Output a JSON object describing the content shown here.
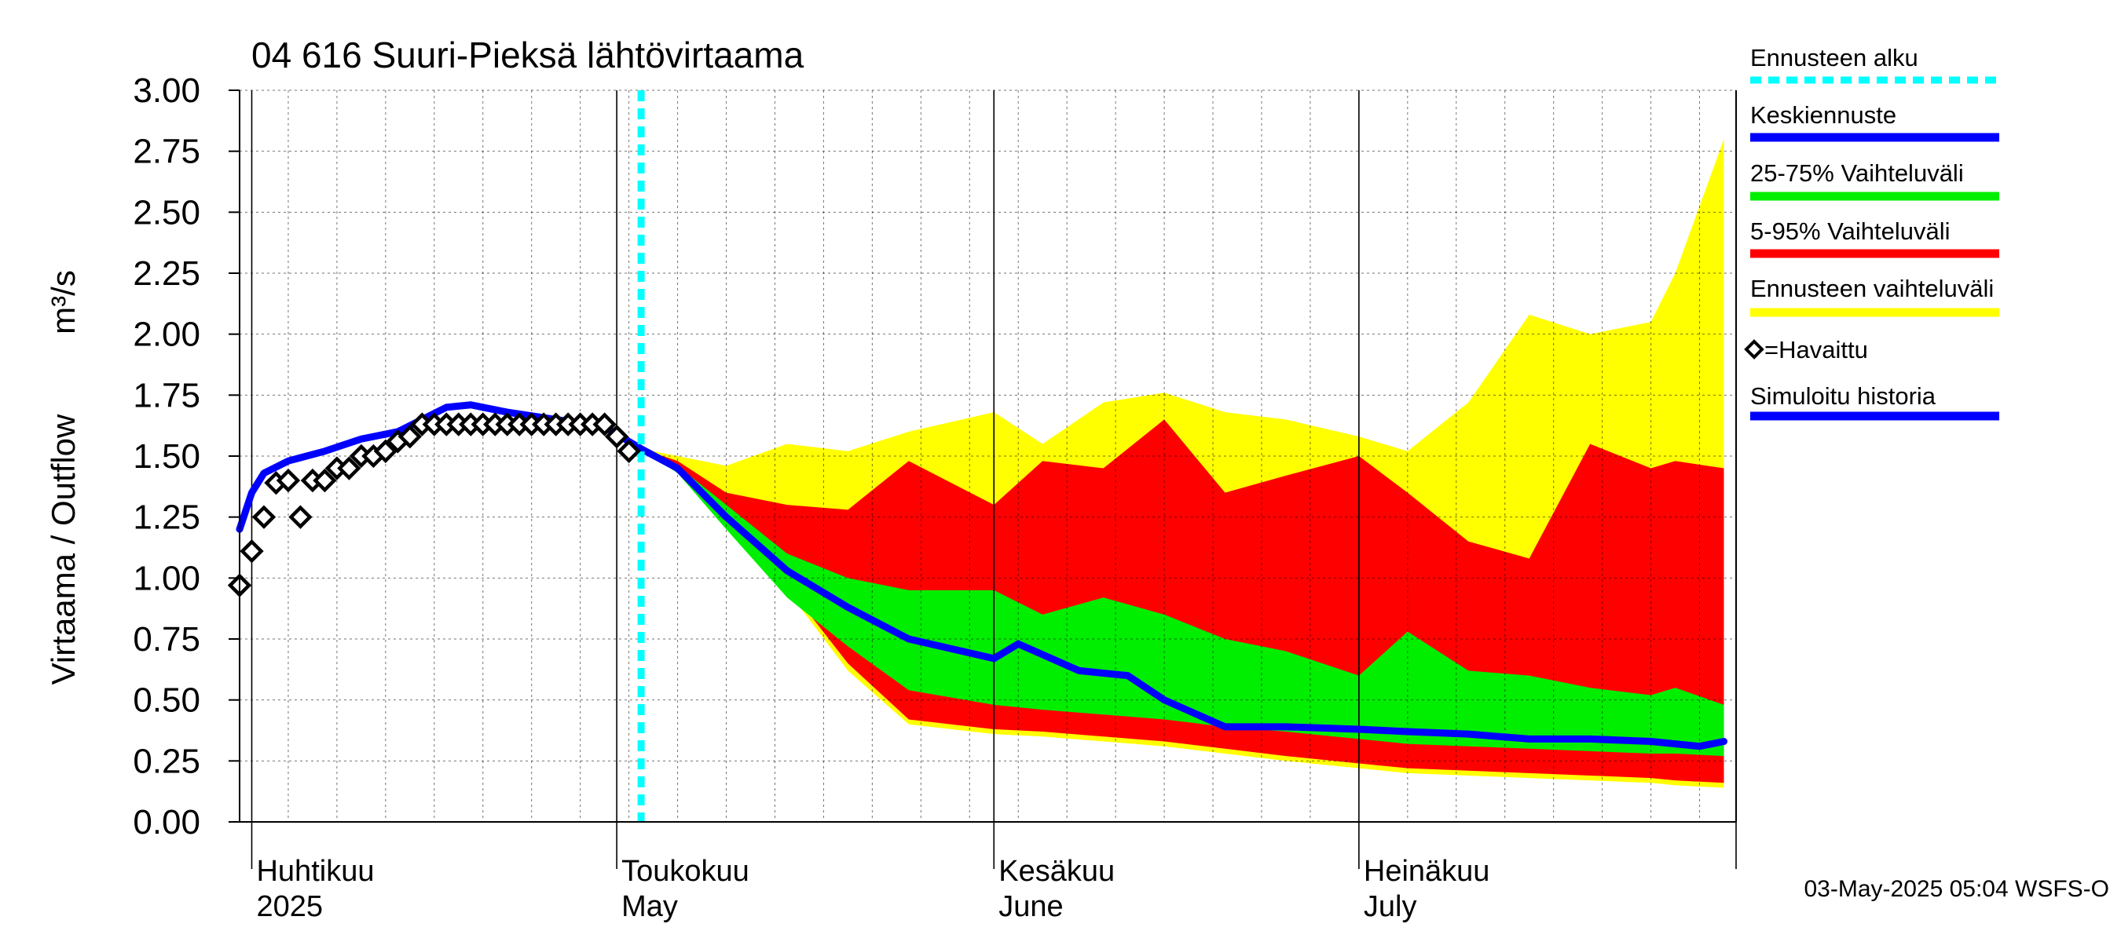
{
  "chart_data": {
    "type": "area",
    "title": "04 616 Suuri-Pieksä lähtövirtaama",
    "ylabel": "Virtaama / Outflow",
    "yunit": "m³/s",
    "ylim": [
      0,
      3.0
    ],
    "yticks": [
      "0.00",
      "0.25",
      "0.50",
      "0.75",
      "1.00",
      "1.25",
      "1.50",
      "1.75",
      "2.00",
      "2.25",
      "2.50",
      "2.75",
      "3.00"
    ],
    "xlim": [
      "2025-03-31",
      "2025-08-01"
    ],
    "month_labels": [
      {
        "line1": "Huhtikuu",
        "line2": "2025",
        "date": "2025-04-01"
      },
      {
        "line1": "Toukokuu",
        "line2": "May",
        "date": "2025-05-01"
      },
      {
        "line1": "Kesäkuu",
        "line2": "June",
        "date": "2025-06-01"
      },
      {
        "line1": "Heinäkuu",
        "line2": "July",
        "date": "2025-07-01"
      }
    ],
    "grid": true,
    "legend_position": "right",
    "footer": "03-May-2025 05:04 WSFS-O",
    "forecast_start": "2025-05-03",
    "band_x": [
      "2025-05-03",
      "2025-05-06",
      "2025-05-10",
      "2025-05-15",
      "2025-05-20",
      "2025-05-25",
      "2025-06-01",
      "2025-06-05",
      "2025-06-10",
      "2025-06-15",
      "2025-06-20",
      "2025-06-25",
      "2025-07-01",
      "2025-07-05",
      "2025-07-10",
      "2025-07-15",
      "2025-07-20",
      "2025-07-25",
      "2025-07-27",
      "2025-07-31"
    ],
    "series": [
      {
        "name": "Ennusteen vaihteluväli",
        "kind": "band",
        "color": "#ffff00",
        "lower": [
          1.53,
          1.45,
          1.25,
          0.95,
          0.62,
          0.4,
          0.36,
          0.35,
          0.33,
          0.31,
          0.28,
          0.25,
          0.22,
          0.2,
          0.19,
          0.18,
          0.17,
          0.16,
          0.15,
          0.14
        ],
        "upper": [
          1.53,
          1.5,
          1.46,
          1.55,
          1.52,
          1.6,
          1.68,
          1.55,
          1.72,
          1.76,
          1.68,
          1.65,
          1.58,
          1.52,
          1.72,
          2.08,
          2.0,
          2.05,
          2.25,
          2.8
        ]
      },
      {
        "name": "5-95% Vaihteluväli",
        "kind": "band",
        "color": "#ff0000",
        "lower": [
          1.53,
          1.45,
          1.27,
          0.97,
          0.65,
          0.42,
          0.38,
          0.37,
          0.35,
          0.33,
          0.3,
          0.27,
          0.24,
          0.22,
          0.21,
          0.2,
          0.19,
          0.18,
          0.17,
          0.16
        ],
        "upper": [
          1.53,
          1.48,
          1.35,
          1.3,
          1.28,
          1.48,
          1.3,
          1.48,
          1.45,
          1.65,
          1.35,
          1.42,
          1.5,
          1.35,
          1.15,
          1.08,
          1.55,
          1.45,
          1.48,
          1.45
        ]
      },
      {
        "name": "25-75% Vaihteluväli",
        "kind": "band",
        "color": "#00ee00",
        "lower": [
          1.53,
          1.43,
          1.2,
          0.92,
          0.72,
          0.54,
          0.48,
          0.46,
          0.44,
          0.42,
          0.39,
          0.37,
          0.34,
          0.32,
          0.31,
          0.3,
          0.29,
          0.28,
          0.28,
          0.27
        ],
        "upper": [
          1.53,
          1.46,
          1.3,
          1.1,
          1.0,
          0.95,
          0.95,
          0.85,
          0.92,
          0.85,
          0.75,
          0.7,
          0.6,
          0.78,
          0.62,
          0.6,
          0.55,
          0.52,
          0.55,
          0.48
        ]
      },
      {
        "name": "Keskiennuste",
        "kind": "line",
        "color": "#0000ff",
        "x": [
          "2025-05-03",
          "2025-05-06",
          "2025-05-10",
          "2025-05-15",
          "2025-05-20",
          "2025-05-25",
          "2025-06-01",
          "2025-06-03",
          "2025-06-08",
          "2025-06-12",
          "2025-06-15",
          "2025-06-20",
          "2025-06-25",
          "2025-07-01",
          "2025-07-05",
          "2025-07-10",
          "2025-07-15",
          "2025-07-20",
          "2025-07-25",
          "2025-07-29",
          "2025-07-31"
        ],
        "values": [
          1.53,
          1.45,
          1.25,
          1.03,
          0.88,
          0.75,
          0.67,
          0.73,
          0.62,
          0.6,
          0.5,
          0.39,
          0.39,
          0.38,
          0.37,
          0.36,
          0.34,
          0.34,
          0.33,
          0.31,
          0.33
        ]
      },
      {
        "name": "Simuloitu historia",
        "kind": "line",
        "color": "#0000ff",
        "x": [
          "2025-03-31",
          "2025-04-01",
          "2025-04-02",
          "2025-04-04",
          "2025-04-07",
          "2025-04-10",
          "2025-04-13",
          "2025-04-17",
          "2025-04-19",
          "2025-04-22",
          "2025-04-26",
          "2025-04-30",
          "2025-05-03"
        ],
        "values": [
          1.2,
          1.35,
          1.43,
          1.48,
          1.52,
          1.57,
          1.6,
          1.7,
          1.71,
          1.68,
          1.65,
          1.62,
          1.53
        ]
      },
      {
        "name": "=Havaittu",
        "kind": "markers",
        "color": "#000000",
        "x": [
          "2025-03-31",
          "2025-04-01",
          "2025-04-02",
          "2025-04-03",
          "2025-04-04",
          "2025-04-05",
          "2025-04-06",
          "2025-04-07",
          "2025-04-08",
          "2025-04-09",
          "2025-04-10",
          "2025-04-11",
          "2025-04-12",
          "2025-04-13",
          "2025-04-14",
          "2025-04-15",
          "2025-04-16",
          "2025-04-17",
          "2025-04-18",
          "2025-04-19",
          "2025-04-20",
          "2025-04-21",
          "2025-04-22",
          "2025-04-23",
          "2025-04-24",
          "2025-04-25",
          "2025-04-26",
          "2025-04-27",
          "2025-04-28",
          "2025-04-29",
          "2025-04-30",
          "2025-05-01",
          "2025-05-02"
        ],
        "values": [
          0.97,
          1.11,
          1.25,
          1.39,
          1.4,
          1.25,
          1.4,
          1.4,
          1.45,
          1.45,
          1.5,
          1.5,
          1.52,
          1.56,
          1.58,
          1.63,
          1.63,
          1.63,
          1.63,
          1.63,
          1.63,
          1.63,
          1.63,
          1.63,
          1.63,
          1.63,
          1.63,
          1.63,
          1.63,
          1.63,
          1.63,
          1.58,
          1.52
        ]
      }
    ],
    "legend": [
      {
        "label": "Ennusteen alku",
        "color": "#00ffff",
        "style": "dashed"
      },
      {
        "label": "Keskiennuste",
        "color": "#0000ff",
        "style": "line"
      },
      {
        "label": "25-75% Vaihteluväli",
        "color": "#00ee00",
        "style": "line"
      },
      {
        "label": "5-95% Vaihteluväli",
        "color": "#ff0000",
        "style": "line"
      },
      {
        "label": "Ennusteen vaihteluväli",
        "color": "#ffff00",
        "style": "line"
      },
      {
        "label": "=Havaittu",
        "color": "#000000",
        "style": "marker"
      },
      {
        "label": "Simuloitu historia",
        "color": "#0000ff",
        "style": "line"
      }
    ]
  }
}
